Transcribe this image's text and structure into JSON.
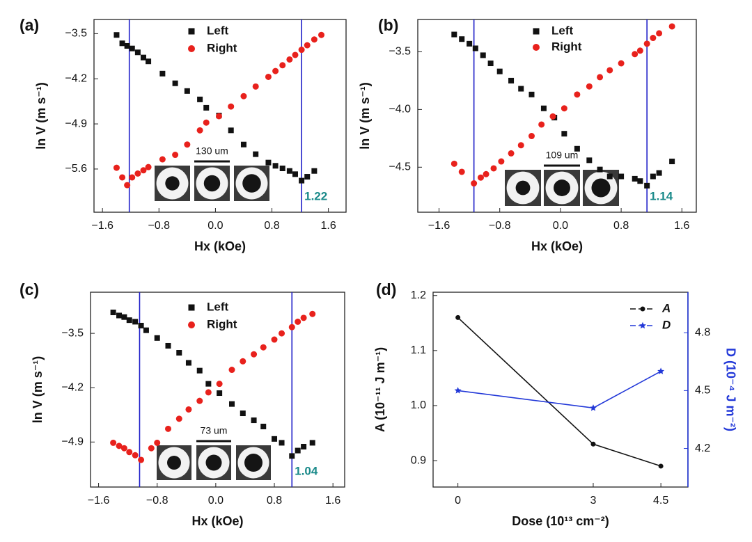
{
  "chart_data": [
    {
      "type": "scatter",
      "label": "(a)",
      "xlabel": "Hx (kOe)",
      "ylabel": "ln V (m s⁻¹)",
      "xlim": [
        -1.72,
        1.85
      ],
      "ylim": [
        -6.27,
        -3.28
      ],
      "xticks": [
        {
          "value": -1.6,
          "label": "−1.6"
        },
        {
          "value": -0.8,
          "label": "−0.8"
        },
        {
          "value": 0,
          "label": "0.0"
        },
        0.8,
        1.6
      ],
      "yticks": [
        {
          "value": -3.5,
          "label": "−3.5"
        },
        {
          "value": -4.2,
          "label": "−4.2"
        },
        {
          "value": -4.9,
          "label": "−4.9"
        },
        {
          "value": -5.6,
          "label": "−5.6"
        }
      ],
      "vlines": [
        -1.22,
        1.22
      ],
      "vline_color": "#1f1fc8",
      "vline_label": "1.22",
      "vline_label_color": "#1a8a8a",
      "inset_label": "130 um",
      "series": [
        {
          "name": "Left",
          "color": "#111111",
          "marker": "square",
          "x": [
            -1.4,
            -1.32,
            -1.25,
            -1.18,
            -1.1,
            -1.02,
            -0.95,
            -0.75,
            -0.57,
            -0.4,
            -0.22,
            -0.13,
            0.05,
            0.22,
            0.4,
            0.57,
            0.75,
            0.85,
            0.95,
            1.05,
            1.13,
            1.22,
            1.3,
            1.4
          ],
          "values": [
            -3.52,
            -3.65,
            -3.69,
            -3.73,
            -3.79,
            -3.87,
            -3.93,
            -4.12,
            -4.27,
            -4.39,
            -4.52,
            -4.65,
            -4.77,
            -5.0,
            -5.22,
            -5.37,
            -5.5,
            -5.55,
            -5.59,
            -5.63,
            -5.68,
            -5.78,
            -5.72,
            -5.63
          ]
        },
        {
          "name": "Right",
          "color": "#e8211c",
          "marker": "circle",
          "x": [
            -1.4,
            -1.32,
            -1.25,
            -1.18,
            -1.1,
            -1.02,
            -0.95,
            -0.75,
            -0.57,
            -0.4,
            -0.22,
            -0.13,
            0.05,
            0.22,
            0.4,
            0.57,
            0.75,
            0.85,
            0.95,
            1.05,
            1.13,
            1.22,
            1.3,
            1.4,
            1.5
          ],
          "values": [
            -5.58,
            -5.73,
            -5.85,
            -5.73,
            -5.67,
            -5.62,
            -5.57,
            -5.45,
            -5.38,
            -5.22,
            -5.0,
            -4.88,
            -4.78,
            -4.63,
            -4.47,
            -4.32,
            -4.17,
            -4.08,
            -3.99,
            -3.9,
            -3.83,
            -3.75,
            -3.68,
            -3.59,
            -3.52
          ]
        }
      ]
    },
    {
      "type": "scatter",
      "label": "(b)",
      "xlabel": "Hx (kOe)",
      "ylabel": "ln V (m s⁻¹)",
      "xlim": [
        -1.88,
        1.79
      ],
      "ylim": [
        -4.89,
        -3.22
      ],
      "xticks": [
        {
          "value": -1.6,
          "label": "−1.6"
        },
        {
          "value": -0.8,
          "label": "−0.8"
        },
        {
          "value": 0,
          "label": "0.0"
        },
        0.8,
        1.6
      ],
      "yticks": [
        {
          "value": -3.5,
          "label": "−3.5"
        },
        {
          "value": -4.0,
          "label": "−4.0"
        },
        {
          "value": -4.5,
          "label": "−4.5"
        }
      ],
      "vlines": [
        -1.14,
        1.14
      ],
      "vline_color": "#1f1fc8",
      "vline_label": "1.14",
      "vline_label_color": "#1a8a8a",
      "inset_label": "109 um",
      "series": [
        {
          "name": "Left",
          "color": "#111111",
          "marker": "square",
          "x": [
            -1.4,
            -1.3,
            -1.2,
            -1.12,
            -1.02,
            -0.92,
            -0.8,
            -0.65,
            -0.52,
            -0.38,
            -0.22,
            -0.08,
            0.05,
            0.22,
            0.38,
            0.52,
            0.65,
            0.8,
            0.98,
            1.05,
            1.14,
            1.22,
            1.3,
            1.47
          ],
          "values": [
            -3.35,
            -3.39,
            -3.43,
            -3.47,
            -3.53,
            -3.6,
            -3.67,
            -3.75,
            -3.82,
            -3.87,
            -3.99,
            -4.07,
            -4.21,
            -4.34,
            -4.44,
            -4.52,
            -4.58,
            -4.58,
            -4.6,
            -4.62,
            -4.66,
            -4.58,
            -4.55,
            -4.45
          ]
        },
        {
          "name": "Right",
          "color": "#e8211c",
          "marker": "circle",
          "x": [
            -1.4,
            -1.3,
            -1.14,
            -1.05,
            -0.98,
            -0.88,
            -0.78,
            -0.65,
            -0.52,
            -0.38,
            -0.25,
            -0.1,
            0.05,
            0.22,
            0.38,
            0.52,
            0.65,
            0.8,
            0.98,
            1.05,
            1.14,
            1.22,
            1.3,
            1.47
          ],
          "values": [
            -4.47,
            -4.54,
            -4.64,
            -4.59,
            -4.56,
            -4.51,
            -4.45,
            -4.38,
            -4.31,
            -4.23,
            -4.13,
            -4.06,
            -3.99,
            -3.87,
            -3.8,
            -3.72,
            -3.66,
            -3.6,
            -3.52,
            -3.49,
            -3.43,
            -3.38,
            -3.34,
            -3.28
          ]
        }
      ]
    },
    {
      "type": "scatter",
      "label": "(c)",
      "xlabel": "Hx (kOe)",
      "ylabel": "ln V (m s⁻¹)",
      "xlim": [
        -1.71,
        1.76
      ],
      "ylim": [
        -5.48,
        -2.97
      ],
      "xticks": [
        {
          "value": -1.6,
          "label": "−1.6"
        },
        {
          "value": -0.8,
          "label": "−0.8"
        },
        {
          "value": 0,
          "label": "0.0"
        },
        0.8,
        1.6
      ],
      "yticks": [
        {
          "value": -3.5,
          "label": "−3.5"
        },
        {
          "value": -4.2,
          "label": "−4.2"
        },
        {
          "value": -4.9,
          "label": "−4.9"
        }
      ],
      "vlines": [
        -1.04,
        1.04
      ],
      "vline_color": "#1f1fc8",
      "vline_label": "1.04",
      "vline_label_color": "#1a8a8a",
      "inset_label": "73 um",
      "series": [
        {
          "name": "Left",
          "color": "#111111",
          "marker": "square",
          "x": [
            -1.4,
            -1.32,
            -1.25,
            -1.18,
            -1.1,
            -1.02,
            -0.95,
            -0.8,
            -0.65,
            -0.5,
            -0.37,
            -0.22,
            -0.1,
            0.05,
            0.22,
            0.37,
            0.52,
            0.65,
            0.8,
            0.9,
            1.04,
            1.12,
            1.2,
            1.32
          ],
          "values": [
            -3.23,
            -3.27,
            -3.29,
            -3.33,
            -3.35,
            -3.4,
            -3.46,
            -3.56,
            -3.66,
            -3.75,
            -3.88,
            -3.98,
            -4.15,
            -4.27,
            -4.41,
            -4.53,
            -4.62,
            -4.7,
            -4.86,
            -4.91,
            -5.08,
            -5.01,
            -4.96,
            -4.91
          ]
        },
        {
          "name": "Right",
          "color": "#e8211c",
          "marker": "circle",
          "x": [
            -1.4,
            -1.32,
            -1.25,
            -1.18,
            -1.1,
            -1.02,
            -0.88,
            -0.8,
            -0.65,
            -0.5,
            -0.37,
            -0.22,
            -0.1,
            0.05,
            0.22,
            0.37,
            0.52,
            0.65,
            0.8,
            0.9,
            1.04,
            1.12,
            1.2,
            1.32
          ],
          "values": [
            -4.91,
            -4.95,
            -4.98,
            -5.03,
            -5.07,
            -5.13,
            -4.98,
            -4.91,
            -4.73,
            -4.6,
            -4.48,
            -4.37,
            -4.26,
            -4.15,
            -3.97,
            -3.86,
            -3.77,
            -3.68,
            -3.58,
            -3.5,
            -3.42,
            -3.35,
            -3.3,
            -3.25
          ]
        }
      ]
    },
    {
      "type": "line",
      "label": "(d)",
      "xlabel": "Dose (10¹³ cm⁻²)",
      "ylabel": "A (10⁻¹¹ J m⁻¹)",
      "y2label": "D (10⁻⁴ J m⁻²)",
      "x": [
        0,
        3,
        4.5
      ],
      "xlim": [
        -0.55,
        5.1
      ],
      "xticks": [
        0,
        3,
        4.5
      ],
      "ylim": [
        0.852,
        1.206
      ],
      "yticks": [
        {
          "value": 0.9,
          "label": "0.9"
        },
        {
          "value": 1.0,
          "label": "1.0"
        },
        1.1,
        {
          "value": 1.2,
          "label": "1.2"
        }
      ],
      "y2lim": [
        4.0,
        5.01
      ],
      "y2ticks": [
        4.2,
        4.5,
        4.8
      ],
      "y2color": "#2238d8",
      "legend": "upper right",
      "series": [
        {
          "name": "A",
          "color": "#111111",
          "marker": "circle",
          "values": [
            1.16,
            0.93,
            0.89
          ]
        },
        {
          "name": "D",
          "color": "#2238d8",
          "marker": "star",
          "axis": "y2",
          "values": [
            4.5,
            4.41,
            4.6
          ]
        }
      ]
    }
  ]
}
